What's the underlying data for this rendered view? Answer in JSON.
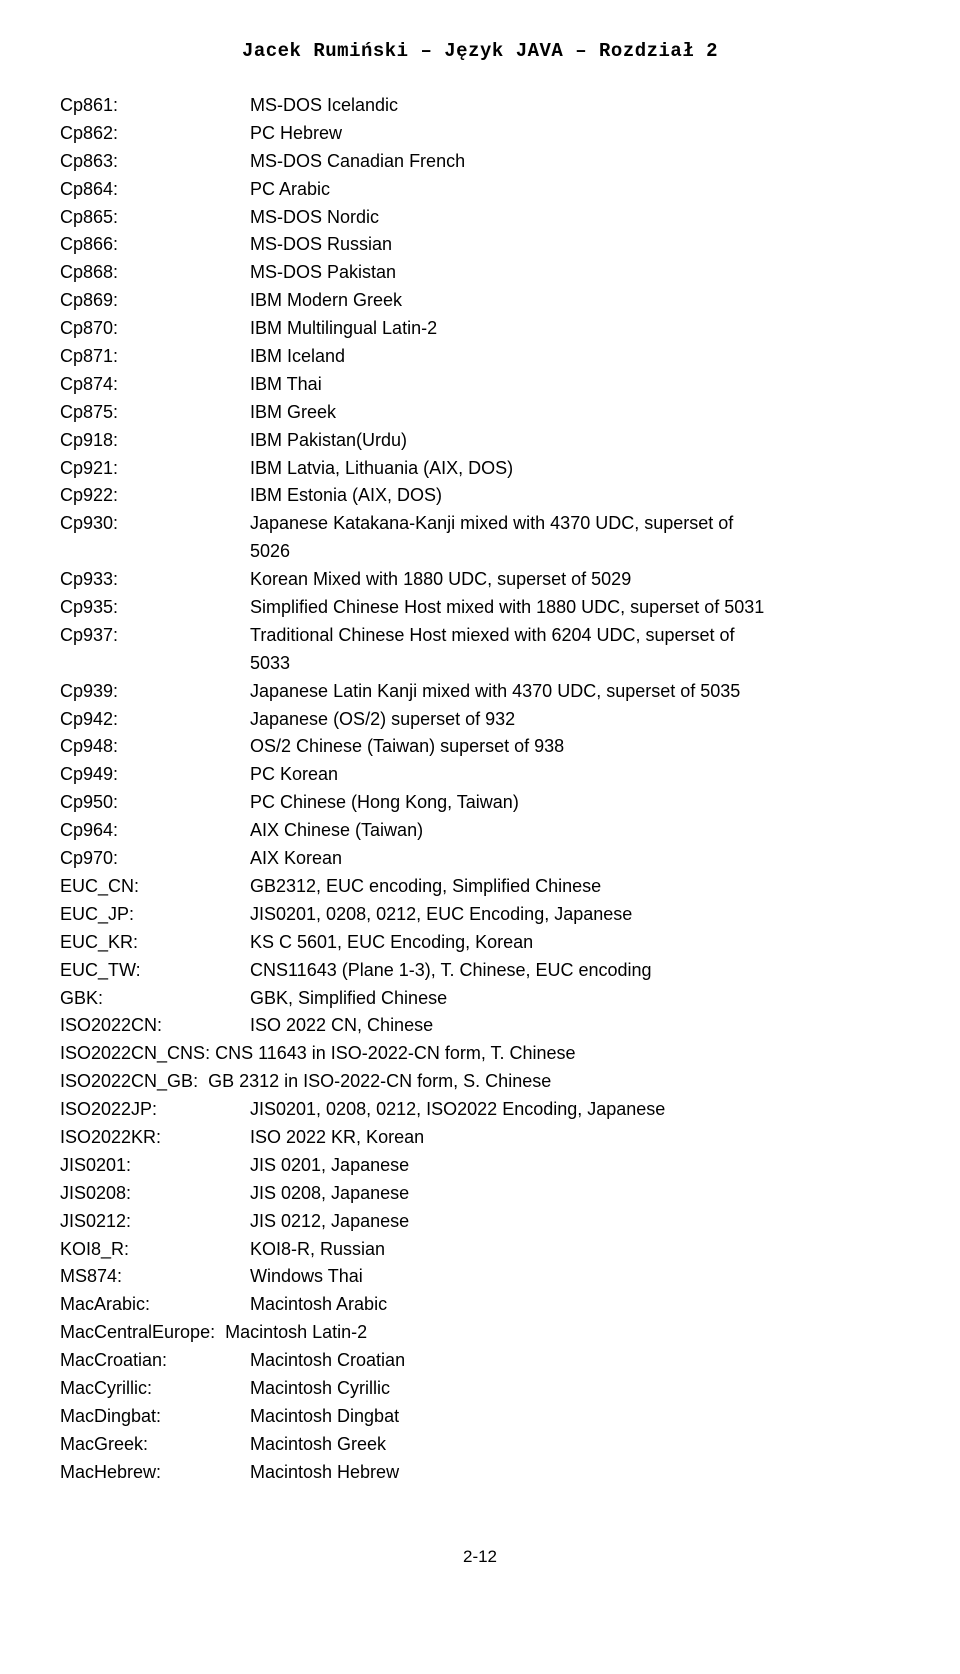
{
  "header": "Jacek Rumiński – Język JAVA – Rozdział 2",
  "footer": "2-12",
  "rows": [
    {
      "key": "Cp861:",
      "val": "MS-DOS Icelandic"
    },
    {
      "key": "Cp862:",
      "val": "PC Hebrew"
    },
    {
      "key": "Cp863:",
      "val": "MS-DOS Canadian French"
    },
    {
      "key": "Cp864:",
      "val": "PC Arabic"
    },
    {
      "key": "Cp865:",
      "val": "MS-DOS Nordic"
    },
    {
      "key": "Cp866:",
      "val": "MS-DOS Russian"
    },
    {
      "key": "Cp868:",
      "val": "MS-DOS Pakistan"
    },
    {
      "key": "Cp869:",
      "val": "IBM Modern Greek"
    },
    {
      "key": "Cp870:",
      "val": "IBM Multilingual Latin-2"
    },
    {
      "key": "Cp871:",
      "val": "IBM Iceland"
    },
    {
      "key": "Cp874:",
      "val": "IBM Thai"
    },
    {
      "key": "Cp875:",
      "val": "IBM Greek"
    },
    {
      "key": "Cp918:",
      "val": "IBM Pakistan(Urdu)"
    },
    {
      "key": "Cp921:",
      "val": "IBM Latvia, Lithuania (AIX, DOS)"
    },
    {
      "key": "Cp922:",
      "val": "IBM Estonia (AIX, DOS)"
    },
    {
      "key": "Cp930:",
      "val": "Japanese Katakana-Kanji mixed with 4370 UDC, superset of"
    },
    {
      "key": "",
      "val": "5026",
      "indent": true
    },
    {
      "key": "Cp933:",
      "val": "Korean Mixed with 1880 UDC, superset of 5029"
    },
    {
      "key": "Cp935:",
      "val": "Simplified Chinese Host mixed with 1880 UDC, superset of 5031"
    },
    {
      "key": "Cp937:",
      "val": "Traditional Chinese Host miexed with 6204 UDC, superset of"
    },
    {
      "key": "",
      "val": " 5033",
      "indent": true
    },
    {
      "key": "Cp939:",
      "val": "Japanese Latin Kanji mixed with 4370 UDC, superset of 5035"
    },
    {
      "key": "Cp942:",
      "val": "Japanese (OS/2) superset of 932"
    },
    {
      "key": "Cp948:",
      "val": "OS/2 Chinese (Taiwan) superset of 938"
    },
    {
      "key": "Cp949:",
      "val": "PC Korean"
    },
    {
      "key": "Cp950:",
      "val": "PC Chinese (Hong Kong, Taiwan)"
    },
    {
      "key": "Cp964:",
      "val": "AIX Chinese (Taiwan)"
    },
    {
      "key": "Cp970:",
      "val": "AIX Korean"
    },
    {
      "key": "EUC_CN:",
      "val": "GB2312, EUC encoding, Simplified Chinese"
    },
    {
      "key": "EUC_JP:",
      "val": "JIS0201, 0208, 0212, EUC Encoding, Japanese"
    },
    {
      "key": "EUC_KR:",
      "val": "KS C 5601, EUC Encoding, Korean"
    },
    {
      "key": "EUC_TW:",
      "val": "CNS11643 (Plane 1-3), T. Chinese, EUC encoding"
    },
    {
      "key": "GBK:",
      "val": "GBK, Simplified Chinese"
    },
    {
      "key": "ISO2022CN:",
      "val": "ISO 2022 CN, Chinese"
    },
    {
      "key": "ISO2022CN_CNS:",
      "val": " CNS 11643 in ISO-2022-CN form, T. Chinese",
      "wide": true
    },
    {
      "key": "ISO2022CN_GB:",
      "val": "  GB 2312 in ISO-2022-CN form, S. Chinese",
      "wide": true
    },
    {
      "key": "ISO2022JP:",
      "val": "JIS0201, 0208, 0212, ISO2022 Encoding, Japanese"
    },
    {
      "key": "ISO2022KR:",
      "val": "ISO 2022 KR, Korean"
    },
    {
      "key": "JIS0201:",
      "val": "JIS 0201, Japanese"
    },
    {
      "key": "JIS0208:",
      "val": "JIS 0208, Japanese"
    },
    {
      "key": "JIS0212:",
      "val": "JIS 0212, Japanese"
    },
    {
      "key": "KOI8_R:",
      "val": "KOI8-R, Russian"
    },
    {
      "key": "MS874:",
      "val": "Windows Thai"
    },
    {
      "key": "MacArabic:",
      "val": "Macintosh Arabic"
    },
    {
      "key": "MacCentralEurope:",
      "val": "  Macintosh Latin-2",
      "wide": true
    },
    {
      "key": "MacCroatian:",
      "val": "Macintosh Croatian"
    },
    {
      "key": "MacCyrillic:",
      "val": "Macintosh Cyrillic"
    },
    {
      "key": "MacDingbat:",
      "val": "Macintosh Dingbat"
    },
    {
      "key": "MacGreek:",
      "val": "Macintosh Greek"
    },
    {
      "key": "MacHebrew:",
      "val": " Macintosh Hebrew"
    }
  ]
}
